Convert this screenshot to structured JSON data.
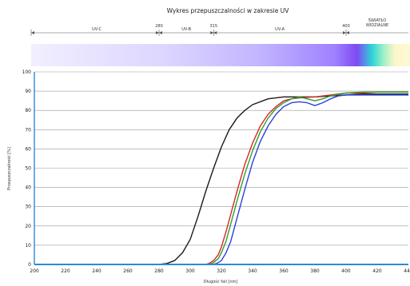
{
  "chart_data": {
    "type": "line",
    "title": "Wykres przepuszczalności w zakresie UV",
    "xlabel": "Długość fali [nm]",
    "ylabel": "Przepuszczalność [%]",
    "xlim": [
      200,
      440
    ],
    "ylim": [
      0,
      100
    ],
    "x_ticks": [
      200,
      220,
      240,
      260,
      280,
      300,
      320,
      340,
      360,
      380,
      400,
      420,
      440
    ],
    "y_ticks": [
      0,
      10,
      20,
      30,
      40,
      50,
      60,
      70,
      80,
      90,
      100
    ],
    "grid": true,
    "legend": "none",
    "spectrum_bands": [
      {
        "label": "UV-C",
        "from": 200,
        "to": 280
      },
      {
        "label": "UV-B",
        "from": 280,
        "to": 315
      },
      {
        "label": "UV-A",
        "from": 315,
        "to": 400
      },
      {
        "label": "ŚWIATŁO WIDZIALNE",
        "from": 400,
        "to": 440
      }
    ],
    "band_boundaries": [
      {
        "label": "280",
        "x": 280
      },
      {
        "label": "315",
        "x": 315
      },
      {
        "label": "400",
        "x": 400
      }
    ],
    "series": [
      {
        "color": "#1a1a1a",
        "x": [
          200,
          280,
          285,
          290,
          295,
          300,
          305,
          310,
          315,
          320,
          325,
          330,
          335,
          340,
          350,
          360,
          370,
          380,
          390,
          400,
          410,
          420,
          430,
          440
        ],
        "values": [
          0,
          0,
          0.5,
          2,
          6,
          13,
          25,
          38,
          50,
          61,
          70,
          76,
          80,
          83,
          86,
          87,
          87,
          87,
          87.5,
          88,
          88.5,
          88.5,
          88.5,
          88.5
        ]
      },
      {
        "color": "#d62728",
        "x": [
          200,
          310,
          312,
          315,
          318,
          320,
          323,
          326,
          330,
          335,
          340,
          345,
          350,
          355,
          360,
          365,
          370,
          380,
          390,
          400,
          410,
          420,
          430,
          440
        ],
        "values": [
          0,
          0,
          0.5,
          2,
          5,
          9,
          17,
          26,
          38,
          52,
          63,
          72,
          78,
          82,
          85,
          86,
          86.5,
          87,
          88,
          89,
          89,
          89.5,
          89.5,
          89.5
        ]
      },
      {
        "color": "#2ca02c",
        "x": [
          200,
          312,
          315,
          318,
          320,
          323,
          326,
          330,
          335,
          340,
          345,
          350,
          355,
          360,
          365,
          370,
          375,
          380,
          385,
          390,
          400,
          410,
          420,
          430,
          440
        ],
        "values": [
          0,
          0,
          1,
          3,
          6,
          12,
          21,
          33,
          47,
          59,
          69,
          76,
          81,
          84,
          86,
          87,
          86,
          85,
          86,
          87.5,
          89,
          89.5,
          89.5,
          89.5,
          89.5
        ]
      },
      {
        "color": "#2c3fe0",
        "x": [
          200,
          314,
          317,
          320,
          323,
          326,
          330,
          335,
          340,
          345,
          350,
          355,
          360,
          365,
          370,
          375,
          380,
          385,
          390,
          395,
          400,
          410,
          420,
          430,
          440
        ],
        "values": [
          0,
          0,
          0.5,
          2,
          6,
          12,
          24,
          39,
          53,
          64,
          72,
          78,
          82,
          84,
          84.5,
          84,
          82.5,
          84,
          86,
          87.5,
          88,
          88,
          88,
          88,
          88
        ]
      }
    ]
  }
}
